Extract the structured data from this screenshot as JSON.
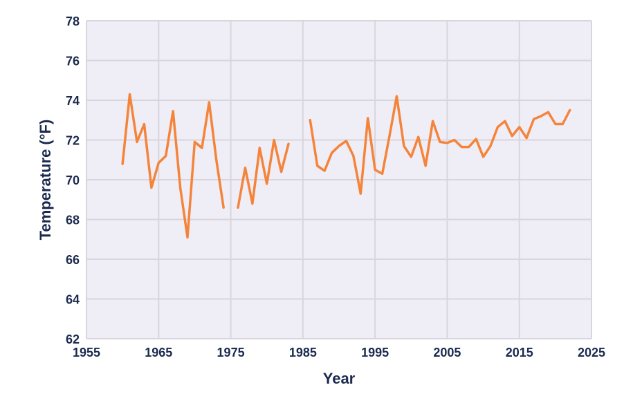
{
  "chart_data": {
    "type": "line",
    "title": "",
    "xlabel": "Year",
    "ylabel": "Temperature (°F)",
    "xlim": [
      1955,
      2025
    ],
    "ylim": [
      62,
      78
    ],
    "xticks": [
      1955,
      1965,
      1975,
      1985,
      1995,
      2005,
      2015,
      2025
    ],
    "yticks": [
      62,
      64,
      66,
      68,
      70,
      72,
      74,
      76,
      78
    ],
    "grid": true,
    "legend": "none",
    "colors": {
      "line": "#f5843b",
      "plot_bg": "#efedf5",
      "grid": "#d8d6dc",
      "text": "#1b2a4e"
    },
    "series": [
      {
        "x": [
          1960,
          1961,
          1962,
          1963,
          1964,
          1965,
          1966,
          1967,
          1968,
          1969,
          1970,
          1971,
          1972,
          1973,
          1974,
          1975,
          1976,
          1977,
          1978,
          1979,
          1980,
          1981,
          1982,
          1983,
          1984,
          1985,
          1986,
          1987,
          1988,
          1989,
          1990,
          1991,
          1992,
          1993,
          1994,
          1995,
          1996,
          1997,
          1998,
          1999,
          2000,
          2001,
          2002,
          2003,
          2004,
          2005,
          2006,
          2007,
          2008,
          2009,
          2010,
          2011,
          2012,
          2013,
          2014,
          2015,
          2016,
          2017,
          2018,
          2019,
          2020,
          2021,
          2022
        ],
        "y": [
          70.8,
          74.3,
          71.9,
          72.8,
          69.6,
          70.85,
          71.2,
          73.45,
          69.6,
          67.1,
          71.9,
          71.6,
          73.9,
          71.0,
          68.6,
          null,
          68.6,
          70.6,
          68.8,
          71.6,
          69.8,
          72.0,
          70.4,
          71.8,
          null,
          null,
          73.0,
          70.7,
          70.45,
          71.35,
          71.7,
          71.95,
          71.2,
          69.3,
          73.1,
          70.5,
          70.3,
          72.2,
          74.2,
          71.7,
          71.15,
          72.15,
          70.7,
          72.95,
          71.9,
          71.85,
          72.0,
          71.65,
          71.65,
          72.05,
          71.15,
          71.7,
          72.65,
          72.95,
          72.2,
          72.65,
          72.1,
          73.05,
          73.2,
          73.4,
          72.8,
          72.8,
          73.5
        ]
      }
    ]
  }
}
